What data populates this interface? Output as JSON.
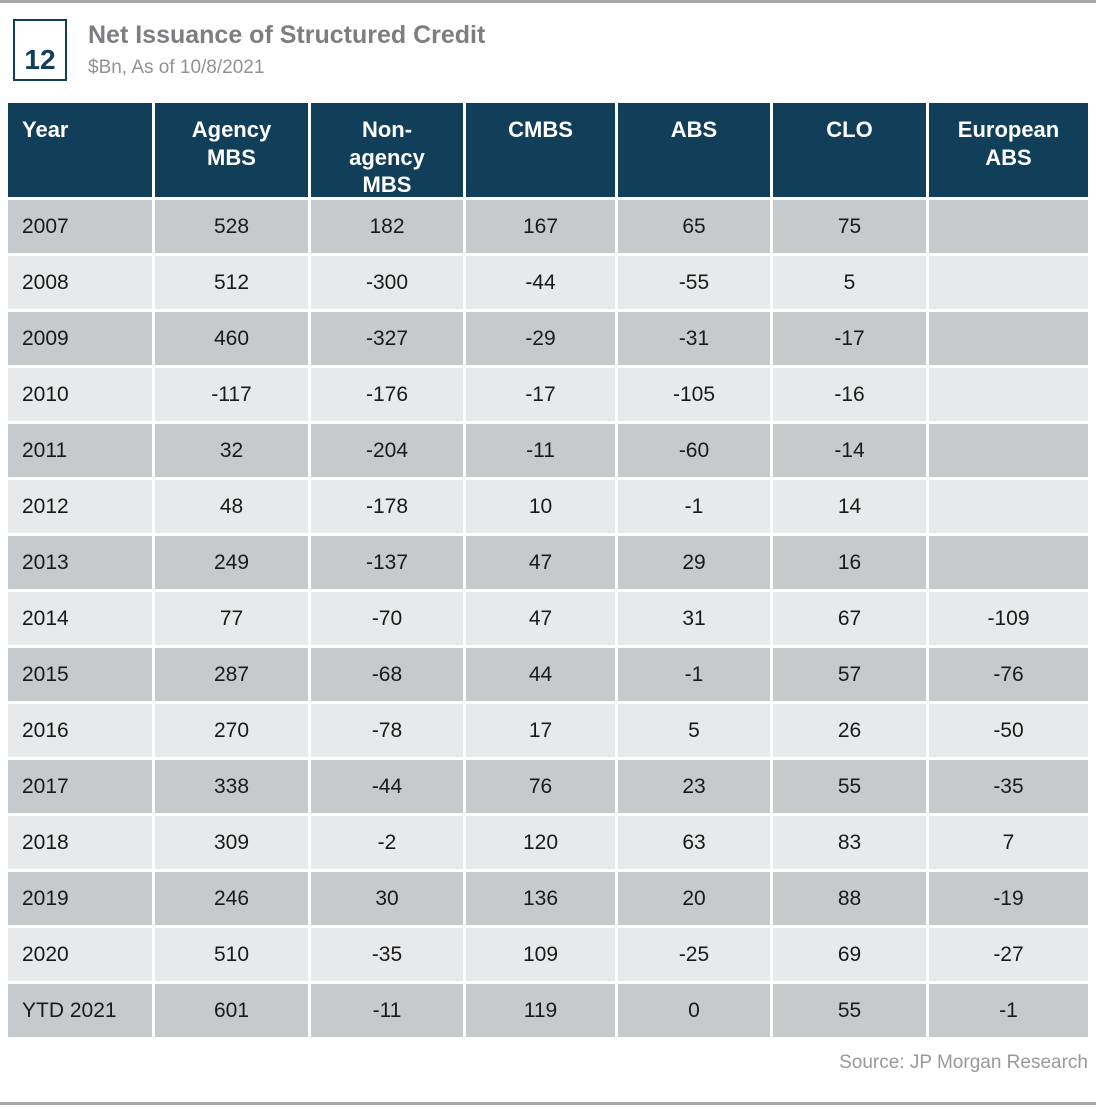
{
  "figure": {
    "number": "12",
    "title": "Net Issuance of Structured Credit",
    "subtitle": "$Bn, As of 10/8/2021"
  },
  "table": {
    "header_labels": [
      "Year",
      "Agency\nMBS",
      "Non-\nagency\nMBS",
      "CMBS",
      "ABS",
      "CLO",
      "European\nABS"
    ]
  },
  "footer": {
    "source": "Source: JP Morgan Research"
  },
  "colors": {
    "header_bg": "#113E58",
    "row_dark": "#C7CACC",
    "row_light": "#E8E9EA",
    "accent": "#113E58",
    "title_gray": "#7C7E81",
    "source_gray": "#97999C",
    "rule_gray": "#A5A7AA"
  },
  "chart_data": {
    "type": "table",
    "title": "Net Issuance of Structured Credit",
    "units": "$Bn",
    "as_of": "10/8/2021",
    "figure_number": "12",
    "columns": [
      "Year",
      "Agency MBS",
      "Non-agency MBS",
      "CMBS",
      "ABS",
      "CLO",
      "European ABS"
    ],
    "rows": [
      [
        "2007",
        528,
        182,
        167,
        65,
        75,
        null
      ],
      [
        "2008",
        512,
        -300,
        -44,
        -55,
        5,
        null
      ],
      [
        "2009",
        460,
        -327,
        -29,
        -31,
        -17,
        null
      ],
      [
        "2010",
        -117,
        -176,
        -17,
        -105,
        -16,
        null
      ],
      [
        "2011",
        32,
        -204,
        -11,
        -60,
        -14,
        null
      ],
      [
        "2012",
        48,
        -178,
        10,
        -1,
        14,
        null
      ],
      [
        "2013",
        249,
        -137,
        47,
        29,
        16,
        null
      ],
      [
        "2014",
        77,
        -70,
        47,
        31,
        67,
        -109
      ],
      [
        "2015",
        287,
        -68,
        44,
        -1,
        57,
        -76
      ],
      [
        "2016",
        270,
        -78,
        17,
        5,
        26,
        -50
      ],
      [
        "2017",
        338,
        -44,
        76,
        23,
        55,
        -35
      ],
      [
        "2018",
        309,
        -2,
        120,
        63,
        83,
        7
      ],
      [
        "2019",
        246,
        30,
        136,
        20,
        88,
        -19
      ],
      [
        "2020",
        510,
        -35,
        109,
        -25,
        69,
        -27
      ],
      [
        "YTD 2021",
        601,
        -11,
        119,
        0,
        55,
        -1
      ]
    ],
    "source": "Source: JP Morgan Research"
  }
}
